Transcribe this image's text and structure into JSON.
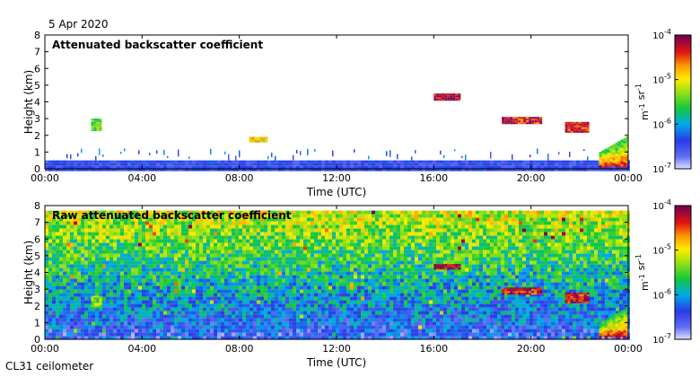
{
  "date_label": "5 Apr 2020",
  "instrument_label": "CL31 ceilometer",
  "chart_data": [
    {
      "type": "heatmap",
      "title": "Attenuated backscatter coefficient",
      "xlabel": "Time (UTC)",
      "ylabel": "Height (km)",
      "xlim": [
        0,
        24
      ],
      "ylim": [
        0,
        8
      ],
      "x_ticks": [
        0,
        4,
        8,
        12,
        16,
        20,
        24
      ],
      "x_tick_labels": [
        "00:00",
        "04:00",
        "08:00",
        "12:00",
        "16:00",
        "20:00",
        "00:00"
      ],
      "y_ticks": [
        0,
        1,
        2,
        3,
        4,
        5,
        6,
        7,
        8
      ],
      "y_tick_labels": [
        "0",
        "1",
        "2",
        "3",
        "4",
        "5",
        "6",
        "7",
        "8"
      ],
      "colorbar": {
        "label": "m-1 sr-1",
        "scale": "log",
        "range": [
          1e-07,
          0.0001
        ],
        "ticks": [
          {
            "value": 0.0001,
            "base": "10",
            "exp": "-4"
          },
          {
            "value": 1e-05,
            "base": "10",
            "exp": "-5"
          },
          {
            "value": 1e-06,
            "base": "10",
            "exp": "-6"
          },
          {
            "value": 1e-07,
            "base": "10",
            "exp": "-7"
          }
        ]
      },
      "features": [
        {
          "name": "boundary-layer",
          "t0": 0,
          "t1": 24,
          "h0": 0,
          "h1": 0.5,
          "level": 0.15
        },
        {
          "name": "cloud-0200",
          "t0": 1.9,
          "t1": 2.3,
          "h0": 2.3,
          "h1": 3.0,
          "level": 0.5
        },
        {
          "name": "aerosol-0830",
          "t0": 8.4,
          "t1": 9.1,
          "h0": 1.6,
          "h1": 1.9,
          "level": 0.7
        },
        {
          "name": "cloud-1600",
          "t0": 16.0,
          "t1": 17.0,
          "h0": 4.1,
          "h1": 4.5,
          "level": 0.97
        },
        {
          "name": "cloud-1900",
          "t0": 18.8,
          "t1": 20.4,
          "h0": 2.7,
          "h1": 3.1,
          "level": 0.9
        },
        {
          "name": "cloud-2100",
          "t0": 21.4,
          "t1": 22.3,
          "h0": 2.2,
          "h1": 2.8,
          "level": 0.9
        },
        {
          "name": "precip-2300",
          "t0": 22.8,
          "t1": 24,
          "h0": 0.2,
          "h1": 2.0,
          "level": 0.6
        }
      ]
    },
    {
      "type": "heatmap",
      "title": "Raw attenuated backscatter coefficient",
      "xlabel": "Time (UTC)",
      "ylabel": "Height (km)",
      "xlim": [
        0,
        24
      ],
      "ylim": [
        0,
        8
      ],
      "x_ticks": [
        0,
        4,
        8,
        12,
        16,
        20,
        24
      ],
      "x_tick_labels": [
        "00:00",
        "04:00",
        "08:00",
        "12:00",
        "16:00",
        "20:00",
        "00:00"
      ],
      "y_ticks": [
        0,
        1,
        2,
        3,
        4,
        5,
        6,
        7,
        8
      ],
      "y_tick_labels": [
        "0",
        "1",
        "2",
        "3",
        "4",
        "5",
        "6",
        "7",
        "8"
      ],
      "colorbar": {
        "label": "m-1 sr-1",
        "scale": "log",
        "range": [
          1e-07,
          0.0001
        ],
        "ticks": [
          {
            "value": 0.0001,
            "base": "10",
            "exp": "-4"
          },
          {
            "value": 1e-05,
            "base": "10",
            "exp": "-5"
          },
          {
            "value": 1e-06,
            "base": "10",
            "exp": "-6"
          },
          {
            "value": 1e-07,
            "base": "10",
            "exp": "-7"
          }
        ]
      },
      "features": [
        {
          "name": "noise-background",
          "t0": 0,
          "t1": 24,
          "h0": 0,
          "h1": 7.7,
          "level": 0.45
        },
        {
          "name": "cloud-0200",
          "t0": 1.9,
          "t1": 2.3,
          "h0": 1.9,
          "h1": 2.6,
          "level": 0.55
        },
        {
          "name": "cloud-1600",
          "t0": 16.0,
          "t1": 17.0,
          "h0": 4.2,
          "h1": 4.5,
          "level": 0.97
        },
        {
          "name": "cloud-1900",
          "t0": 18.8,
          "t1": 20.4,
          "h0": 2.7,
          "h1": 3.1,
          "level": 0.9
        },
        {
          "name": "cloud-2100",
          "t0": 21.4,
          "t1": 22.3,
          "h0": 2.2,
          "h1": 2.8,
          "level": 0.9
        },
        {
          "name": "precip-2300",
          "t0": 22.8,
          "t1": 24,
          "h0": 0.2,
          "h1": 2.0,
          "level": 0.6
        }
      ]
    }
  ]
}
